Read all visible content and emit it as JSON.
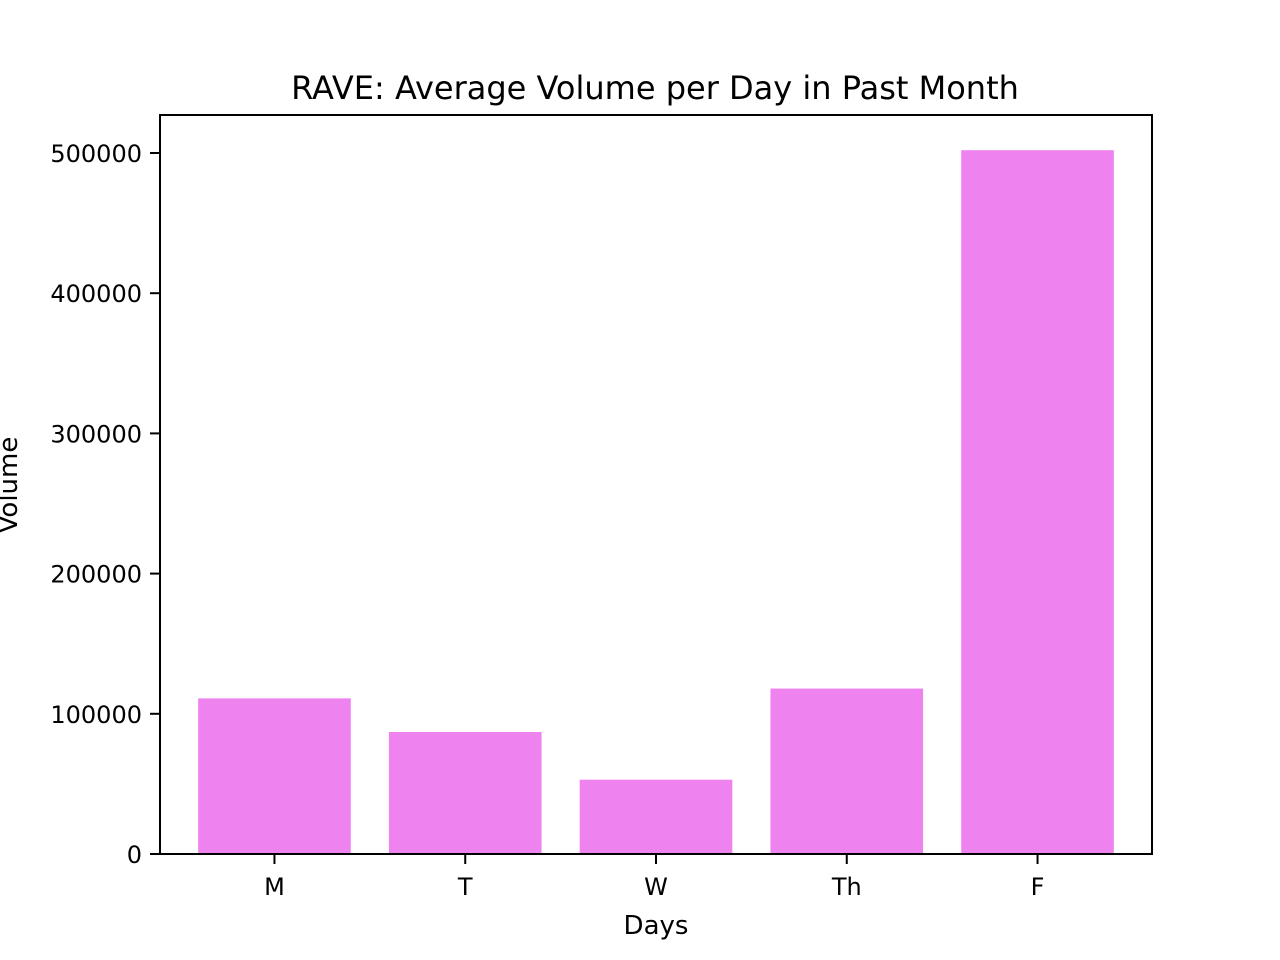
{
  "chart_data": {
    "type": "bar",
    "title": "RAVE: Average Volume per Day in Past Month",
    "xlabel": "Days",
    "ylabel": "Volume",
    "categories": [
      "M",
      "T",
      "W",
      "Th",
      "F"
    ],
    "values": [
      111000,
      87000,
      53000,
      118000,
      502000
    ],
    "ylim": [
      0,
      527100
    ],
    "yticks": [
      0,
      100000,
      200000,
      300000,
      400000,
      500000
    ],
    "ytick_labels": [
      "0",
      "100000",
      "200000",
      "300000",
      "400000",
      "500000"
    ],
    "grid": false,
    "legend": "none",
    "bar_color": "#ee82ee"
  }
}
